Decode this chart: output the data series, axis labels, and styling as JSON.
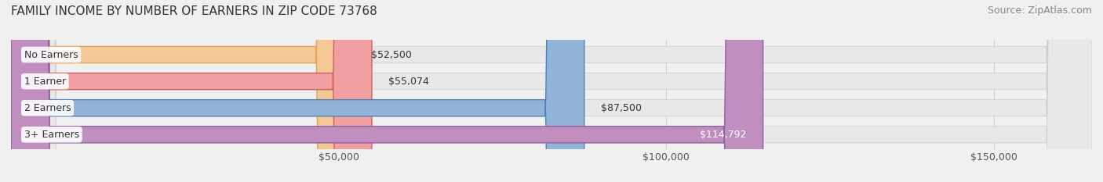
{
  "title": "FAMILY INCOME BY NUMBER OF EARNERS IN ZIP CODE 73768",
  "source": "Source: ZipAtlas.com",
  "categories": [
    "No Earners",
    "1 Earner",
    "2 Earners",
    "3+ Earners"
  ],
  "values": [
    52500,
    55074,
    87500,
    114792
  ],
  "labels": [
    "$52,500",
    "$55,074",
    "$87,500",
    "$114,792"
  ],
  "bar_colors": [
    "#f5c895",
    "#f0a0a0",
    "#92b4d8",
    "#c08fc0"
  ],
  "bar_edge_colors": [
    "#e8a050",
    "#d06060",
    "#5080b8",
    "#9060a0"
  ],
  "label_colors": [
    "#333333",
    "#333333",
    "#333333",
    "#ffffff"
  ],
  "xlim": [
    0,
    165000
  ],
  "xticks": [
    50000,
    100000,
    150000
  ],
  "xtick_labels": [
    "$50,000",
    "$100,000",
    "$150,000"
  ],
  "background_color": "#f0f0f0",
  "bar_bg_color": "#e8e8e8",
  "title_fontsize": 11,
  "source_fontsize": 9,
  "label_fontsize": 9,
  "category_fontsize": 9,
  "tick_fontsize": 9
}
